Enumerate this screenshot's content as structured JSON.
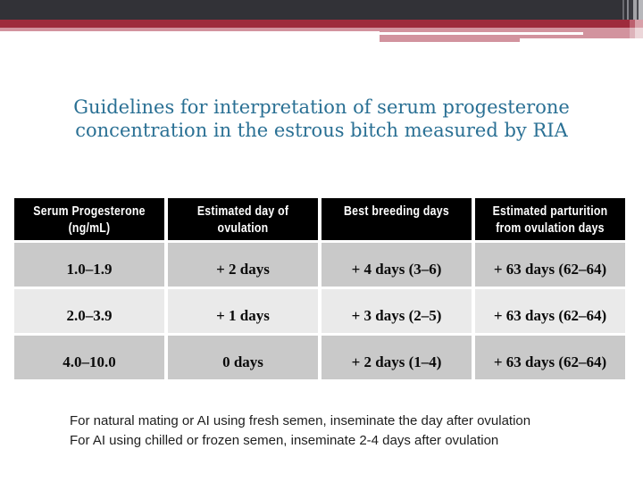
{
  "title": {
    "line1": "Guidelines for interpretation of serum progesterone",
    "line2": "concentration in the estrous bitch measured by RIA"
  },
  "table": {
    "headers": [
      {
        "line1": "Serum Progesterone",
        "line2": "(ng/mL)"
      },
      {
        "line1": "Estimated day of",
        "line2": "ovulation"
      },
      {
        "line1": "Best breeding days",
        "line2": ""
      },
      {
        "line1": "Estimated parturition",
        "line2": "from ovulation days"
      }
    ],
    "rows": [
      {
        "cells": [
          "1.0–1.9",
          "+ 2 days",
          "+ 4 days (3–6)",
          "+ 63 days (62–64)"
        ]
      },
      {
        "cells": [
          "2.0–3.9",
          "+ 1 days",
          "+ 3 days (2–5)",
          "+ 63 days (62–64)"
        ]
      },
      {
        "cells": [
          "4.0–10.0",
          "0 days",
          "+ 2 days (1–4)",
          "+ 63 days (62–64)"
        ]
      }
    ]
  },
  "notes": {
    "line1": "For natural mating or AI using fresh semen, inseminate the day after ovulation",
    "line2": "For AI using chilled or frozen semen, inseminate 2-4 days after ovulation"
  },
  "theme": {
    "banner_charcoal": "#323237",
    "banner_crimson": "#9e2b3c",
    "banner_pink": "#d2939e",
    "title_color": "#2a7094",
    "header_bg": "#000000",
    "header_text": "#ffffff",
    "row_dark": "#c9c9c9",
    "row_light": "#eaeaea"
  }
}
